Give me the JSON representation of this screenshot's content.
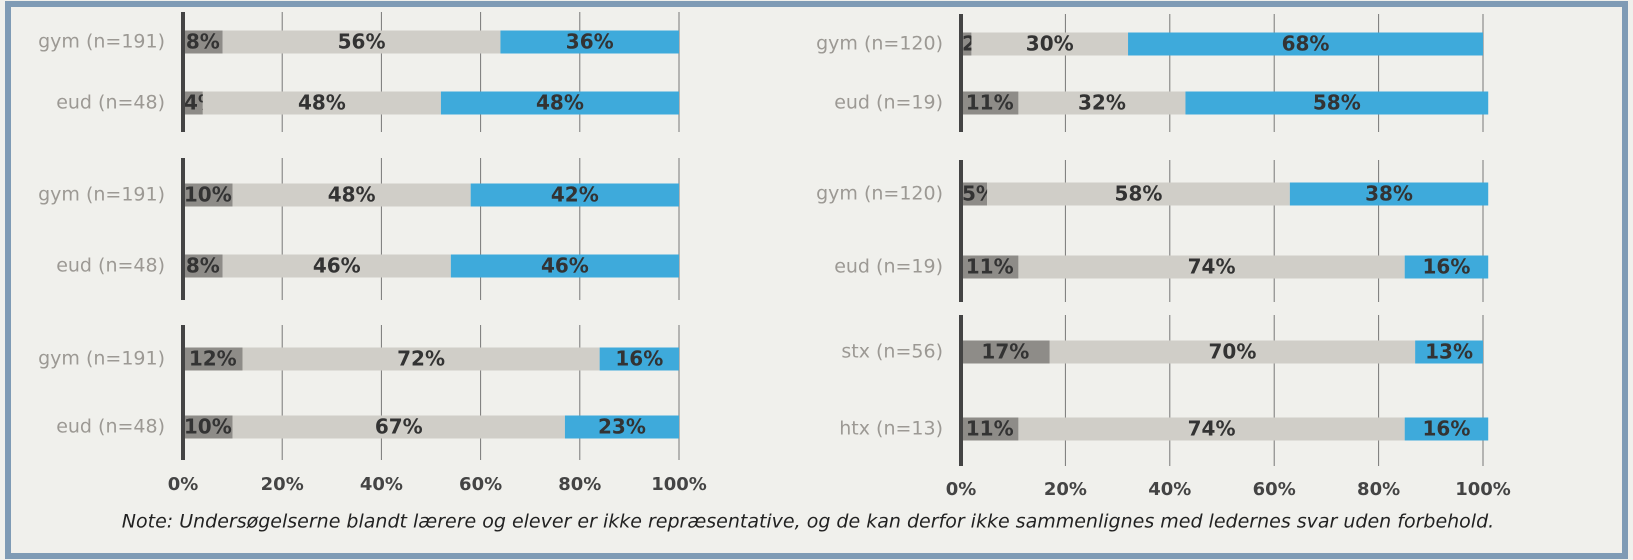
{
  "chart_data": [
    {
      "type": "bar",
      "orientation": "horizontal",
      "stacked": true,
      "categories": [
        "gym (n=191)",
        "eud (n=48)"
      ],
      "series": [
        {
          "color": "#8e8c88",
          "values": [
            8,
            4
          ],
          "value_labels": [
            "8%",
            "4%"
          ]
        },
        {
          "color": "#d0cec8",
          "values": [
            56,
            48
          ],
          "value_labels": [
            "56%",
            "48%"
          ]
        },
        {
          "color": "#3eaadb",
          "values": [
            36,
            48
          ],
          "value_labels": [
            "36%",
            "48%"
          ]
        }
      ],
      "xlim": [
        0,
        100
      ],
      "xticks": [
        0,
        20,
        40,
        60,
        80,
        100
      ],
      "show_tick_labels": false,
      "grid": true
    },
    {
      "type": "bar",
      "orientation": "horizontal",
      "stacked": true,
      "categories": [
        "gym (n=191)",
        "eud (n=48)"
      ],
      "series": [
        {
          "color": "#8e8c88",
          "values": [
            10,
            8
          ],
          "value_labels": [
            "10%",
            "8%"
          ]
        },
        {
          "color": "#d0cec8",
          "values": [
            48,
            46
          ],
          "value_labels": [
            "48%",
            "46%"
          ]
        },
        {
          "color": "#3eaadb",
          "values": [
            42,
            46
          ],
          "value_labels": [
            "42%",
            "46%"
          ]
        }
      ],
      "xlim": [
        0,
        100
      ],
      "xticks": [
        0,
        20,
        40,
        60,
        80,
        100
      ],
      "show_tick_labels": false,
      "grid": true
    },
    {
      "type": "bar",
      "orientation": "horizontal",
      "stacked": true,
      "categories": [
        "gym (n=191)",
        "eud (n=48)"
      ],
      "series": [
        {
          "color": "#8e8c88",
          "values": [
            12,
            10
          ],
          "value_labels": [
            "12%",
            "10%"
          ]
        },
        {
          "color": "#d0cec8",
          "values": [
            72,
            67
          ],
          "value_labels": [
            "72%",
            "67%"
          ]
        },
        {
          "color": "#3eaadb",
          "values": [
            16,
            23
          ],
          "value_labels": [
            "16%",
            "23%"
          ]
        }
      ],
      "xlim": [
        0,
        100
      ],
      "xticks": [
        {
          "value": 0,
          "label": "0%"
        },
        {
          "value": 20,
          "label": "20%"
        },
        {
          "value": 40,
          "label": "40%"
        },
        {
          "value": 60,
          "label": "60%"
        },
        {
          "value": 80,
          "label": "80%"
        },
        {
          "value": 100,
          "label": "100%"
        }
      ],
      "show_tick_labels": true,
      "grid": true
    },
    {
      "type": "bar",
      "orientation": "horizontal",
      "stacked": true,
      "categories": [
        "gym (n=120)",
        "eud (n=19)"
      ],
      "series": [
        {
          "color": "#8e8c88",
          "values": [
            2,
            11
          ],
          "value_labels": [
            "2%",
            "11%"
          ]
        },
        {
          "color": "#d0cec8",
          "values": [
            30,
            32
          ],
          "value_labels": [
            "30%",
            "32%"
          ]
        },
        {
          "color": "#3eaadb",
          "values": [
            68,
            58
          ],
          "value_labels": [
            "68%",
            "58%"
          ]
        }
      ],
      "xlim": [
        0,
        100
      ],
      "xticks": [
        0,
        20,
        40,
        60,
        80,
        100
      ],
      "show_tick_labels": false,
      "grid": true
    },
    {
      "type": "bar",
      "orientation": "horizontal",
      "stacked": true,
      "categories": [
        "gym (n=120)",
        "eud (n=19)"
      ],
      "series": [
        {
          "color": "#8e8c88",
          "values": [
            5,
            11
          ],
          "value_labels": [
            "5%",
            "11%"
          ]
        },
        {
          "color": "#d0cec8",
          "values": [
            58,
            74
          ],
          "value_labels": [
            "58%",
            "74%"
          ]
        },
        {
          "color": "#3eaadb",
          "values": [
            38,
            16
          ],
          "value_labels": [
            "38%",
            "16%"
          ]
        }
      ],
      "xlim": [
        0,
        100
      ],
      "xticks": [
        0,
        20,
        40,
        60,
        80,
        100
      ],
      "show_tick_labels": false,
      "grid": true
    },
    {
      "type": "bar",
      "orientation": "horizontal",
      "stacked": true,
      "categories": [
        "stx (n=56)",
        "htx (n=13)"
      ],
      "series": [
        {
          "color": "#8e8c88",
          "values": [
            17,
            11
          ],
          "value_labels": [
            "17%",
            "11%"
          ]
        },
        {
          "color": "#d0cec8",
          "values": [
            70,
            74
          ],
          "value_labels": [
            "70%",
            "74%"
          ]
        },
        {
          "color": "#3eaadb",
          "values": [
            13,
            16
          ],
          "value_labels": [
            "13%",
            "16%"
          ]
        }
      ],
      "xlim": [
        0,
        100
      ],
      "xticks": [
        {
          "value": 0,
          "label": "0%"
        },
        {
          "value": 20,
          "label": "20%"
        },
        {
          "value": 40,
          "label": "40%"
        },
        {
          "value": 60,
          "label": "60%"
        },
        {
          "value": 80,
          "label": "80%"
        },
        {
          "value": 100,
          "label": "100%"
        }
      ],
      "show_tick_labels": true,
      "grid": true
    }
  ],
  "note": "Note: Undersøgelserne blandt lærere og elever er ikke repræsentative, og de kan derfor ikke sammenlignes med ledernes svar uden forbehold."
}
